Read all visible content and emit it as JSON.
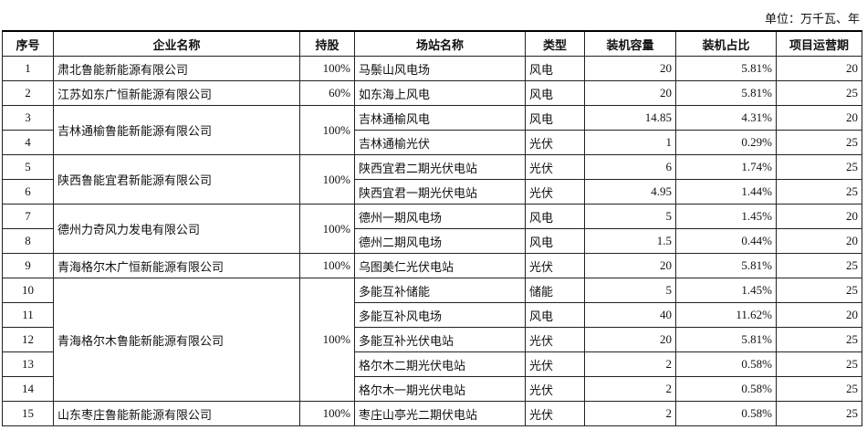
{
  "unit": "单位：万千瓦、年",
  "headers": [
    "序号",
    "企业名称",
    "持股",
    "场站名称",
    "类型",
    "装机容量",
    "装机占比",
    "项目运营期"
  ],
  "groups": [
    {
      "company": "肃北鲁能新能源有限公司",
      "share": "100%",
      "stations": [
        {
          "no": "1",
          "name": "马鬃山风电场",
          "type": "风电",
          "capacity": "20",
          "ratio": "5.81%",
          "period": "20"
        }
      ]
    },
    {
      "company": "江苏如东广恒新能源有限公司",
      "share": "60%",
      "stations": [
        {
          "no": "2",
          "name": "如东海上风电",
          "type": "风电",
          "capacity": "20",
          "ratio": "5.81%",
          "period": "25"
        }
      ]
    },
    {
      "company": "吉林通榆鲁能新能源有限公司",
      "share": "100%",
      "stations": [
        {
          "no": "3",
          "name": "吉林通榆风电",
          "type": "风电",
          "capacity": "14.85",
          "ratio": "4.31%",
          "period": "20"
        },
        {
          "no": "4",
          "name": "吉林通榆光伏",
          "type": "光伏",
          "capacity": "1",
          "ratio": "0.29%",
          "period": "25"
        }
      ]
    },
    {
      "company": "陕西鲁能宜君新能源有限公司",
      "share": "100%",
      "stations": [
        {
          "no": "5",
          "name": "陕西宜君二期光伏电站",
          "type": "光伏",
          "capacity": "6",
          "ratio": "1.74%",
          "period": "25"
        },
        {
          "no": "6",
          "name": "陕西宜君一期光伏电站",
          "type": "光伏",
          "capacity": "4.95",
          "ratio": "1.44%",
          "period": "25"
        }
      ]
    },
    {
      "company": "德州力奇风力发电有限公司",
      "share": "100%",
      "stations": [
        {
          "no": "7",
          "name": "德州一期风电场",
          "type": "风电",
          "capacity": "5",
          "ratio": "1.45%",
          "period": "20"
        },
        {
          "no": "8",
          "name": "德州二期风电场",
          "type": "风电",
          "capacity": "1.5",
          "ratio": "0.44%",
          "period": "20"
        }
      ]
    },
    {
      "company": "青海格尔木广恒新能源有限公司",
      "share": "100%",
      "stations": [
        {
          "no": "9",
          "name": "乌图美仁光伏电站",
          "type": "光伏",
          "capacity": "20",
          "ratio": "5.81%",
          "period": "25"
        }
      ]
    },
    {
      "company": "青海格尔木鲁能新能源有限公司",
      "share": "100%",
      "stations": [
        {
          "no": "10",
          "name": "多能互补储能",
          "type": "储能",
          "capacity": "5",
          "ratio": "1.45%",
          "period": "25"
        },
        {
          "no": "11",
          "name": "多能互补风电场",
          "type": "风电",
          "capacity": "40",
          "ratio": "11.62%",
          "period": "20"
        },
        {
          "no": "12",
          "name": "多能互补光伏电站",
          "type": "光伏",
          "capacity": "20",
          "ratio": "5.81%",
          "period": "25"
        },
        {
          "no": "13",
          "name": "格尔木二期光伏电站",
          "type": "光伏",
          "capacity": "2",
          "ratio": "0.58%",
          "period": "25"
        },
        {
          "no": "14",
          "name": "格尔木一期光伏电站",
          "type": "光伏",
          "capacity": "2",
          "ratio": "0.58%",
          "period": "25"
        }
      ]
    },
    {
      "company": "山东枣庄鲁能新能源有限公司",
      "share": "100%",
      "stations": [
        {
          "no": "15",
          "name": "枣庄山亭光二期伏电站",
          "type": "光伏",
          "capacity": "2",
          "ratio": "0.58%",
          "period": "25"
        }
      ]
    }
  ]
}
